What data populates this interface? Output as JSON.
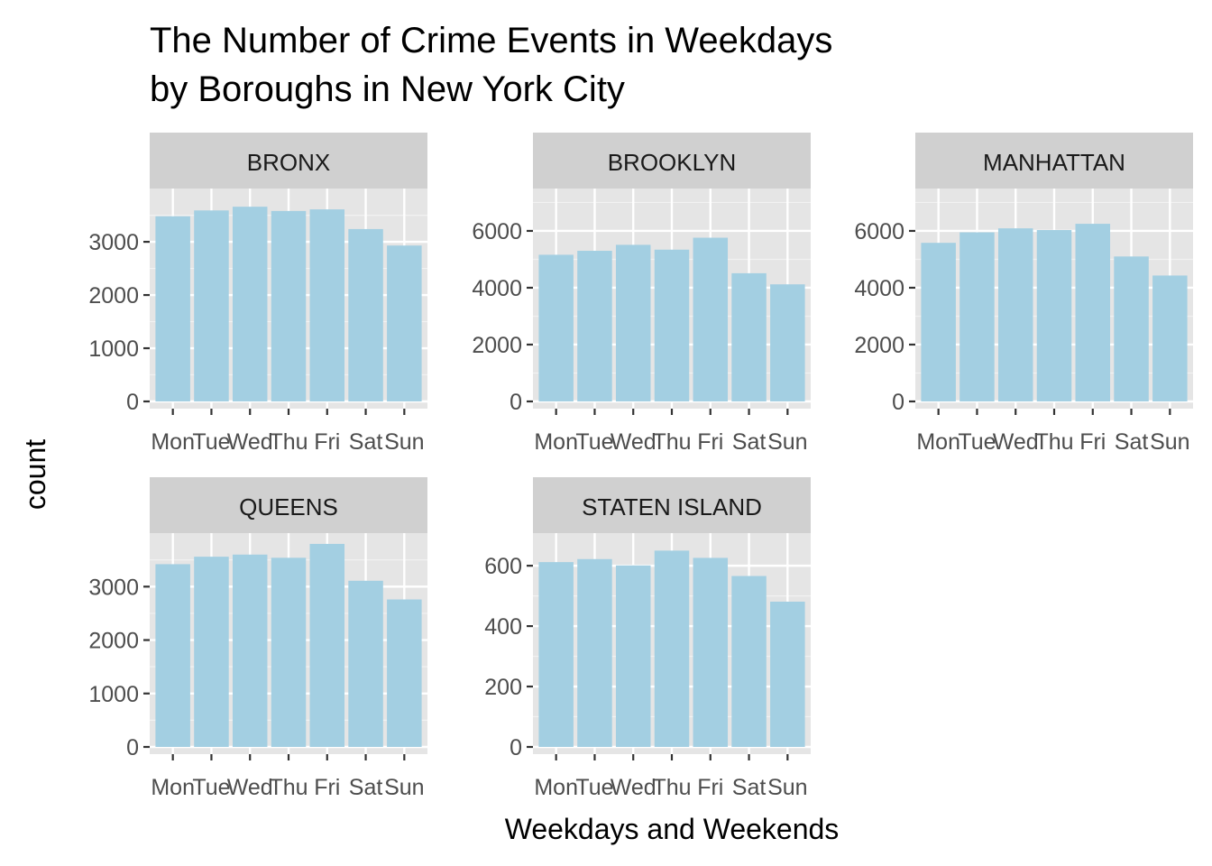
{
  "chart_data": {
    "type": "bar",
    "layout": "facet_wrap",
    "title": [
      "The Number of Crime Events in Weekdays",
      "by Boroughs in New York City"
    ],
    "xlabel": "Weekdays and Weekends",
    "ylabel": "count",
    "categories": [
      "Mon",
      "Tue",
      "Wed",
      "Thu",
      "Fri",
      "Sat",
      "Sun"
    ],
    "bar_color": "#a3cfe2",
    "panel_background": "#e5e5e5",
    "strip_background": "#d0d0d0",
    "grid": true,
    "facets": [
      {
        "name": "BRONX",
        "values": [
          3480,
          3590,
          3660,
          3580,
          3610,
          3240,
          2930
        ],
        "ylim": [
          0,
          3900
        ],
        "yticks": [
          0,
          1000,
          2000,
          3000
        ],
        "ytick_labels": [
          "0",
          "1000",
          "2000",
          "3000"
        ]
      },
      {
        "name": "BROOKLYN",
        "values": [
          5160,
          5300,
          5510,
          5340,
          5760,
          4510,
          4120
        ],
        "ylim": [
          0,
          7300
        ],
        "yticks": [
          0,
          2000,
          4000,
          6000
        ],
        "ytick_labels": [
          "0",
          "2000",
          "4000",
          "6000"
        ]
      },
      {
        "name": "MANHATTAN",
        "values": [
          5580,
          5950,
          6090,
          6030,
          6250,
          5100,
          4430
        ],
        "ylim": [
          0,
          7300
        ],
        "yticks": [
          0,
          2000,
          4000,
          6000
        ],
        "ytick_labels": [
          "0",
          "2000",
          "4000",
          "6000"
        ]
      },
      {
        "name": "QUEENS",
        "values": [
          3420,
          3560,
          3600,
          3540,
          3800,
          3110,
          2760
        ],
        "ylim": [
          0,
          3900
        ],
        "yticks": [
          0,
          1000,
          2000,
          3000
        ],
        "ytick_labels": [
          "0",
          "1000",
          "2000",
          "3000"
        ]
      },
      {
        "name": "STATEN ISLAND",
        "values": [
          612,
          622,
          601,
          650,
          626,
          566,
          481
        ],
        "ylim": [
          0,
          690
        ],
        "yticks": [
          0,
          200,
          400,
          600
        ],
        "ytick_labels": [
          "0",
          "200",
          "400",
          "600"
        ]
      }
    ]
  }
}
